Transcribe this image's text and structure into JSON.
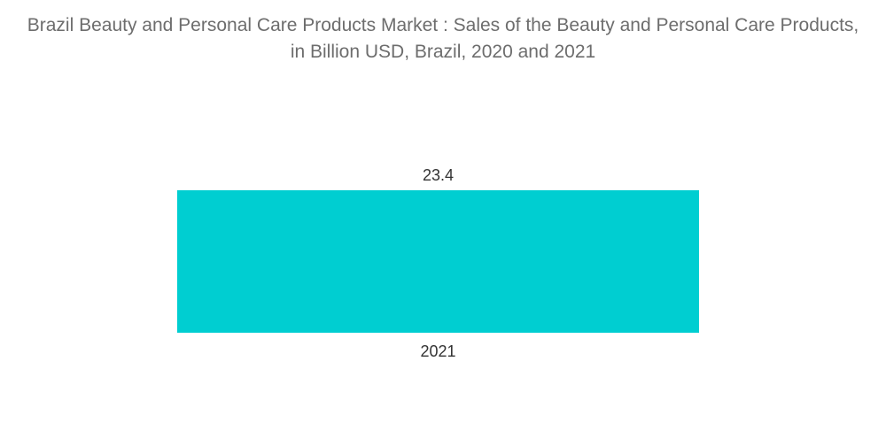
{
  "chart_data": {
    "type": "bar",
    "title": "Brazil Beauty and Personal Care Products Market : Sales of the Beauty and Personal Care Products, in Billion USD, Brazil, 2020 and 2021",
    "xlabel": "",
    "ylabel": "",
    "categories": [
      "2021"
    ],
    "values": [
      23.4
    ],
    "ylim": [
      0,
      23.4
    ],
    "grid": false,
    "legend": "none",
    "colors": {
      "bar": "#00ced1"
    }
  }
}
